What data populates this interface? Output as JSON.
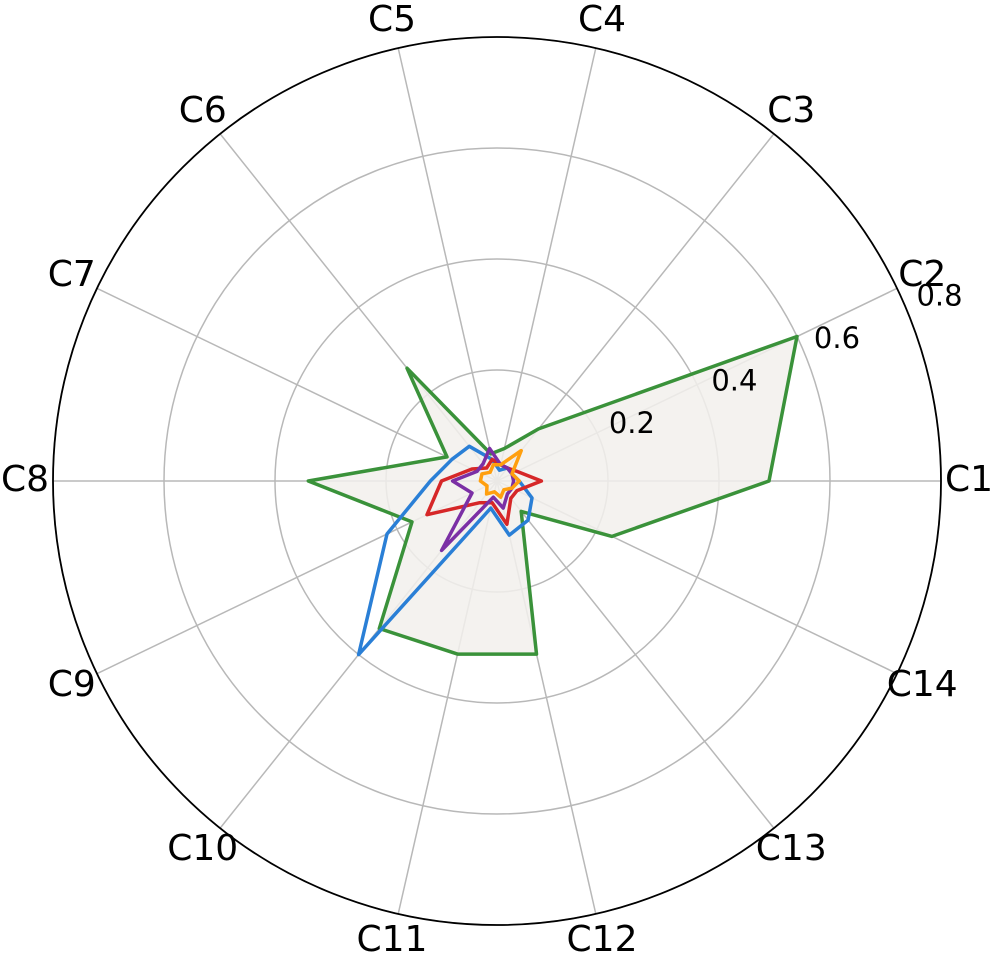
{
  "chart_data": {
    "type": "radar",
    "categories": [
      "C1",
      "C2",
      "C3",
      "C4",
      "C5",
      "C6",
      "C7",
      "C8",
      "C9",
      "C10",
      "C11",
      "C12",
      "C13",
      "C14"
    ],
    "ylim": [
      0,
      0.8
    ],
    "yticks": [
      0.2,
      0.4,
      0.6,
      0.8
    ],
    "grid": true,
    "series": [
      {
        "color": "#3a923a",
        "fill": "#f2f0ec",
        "values": [
          0.49,
          0.6,
          0.12,
          0.06,
          0.05,
          0.26,
          0.1,
          0.34,
          0.17,
          0.34,
          0.32,
          0.32,
          0.07,
          0.23
        ]
      },
      {
        "color": "#2a7fd6",
        "values": [
          0.04,
          0.03,
          0.03,
          0.02,
          0.04,
          0.08,
          0.09,
          0.12,
          0.22,
          0.4,
          0.05,
          0.1,
          0.09,
          0.07
        ]
      },
      {
        "color": "#d62728",
        "values": [
          0.08,
          0.04,
          0.03,
          0.03,
          0.04,
          0.03,
          0.05,
          0.1,
          0.14,
          0.05,
          0.04,
          0.08,
          0.04,
          0.04
        ]
      },
      {
        "color": "#7b2fa5",
        "values": [
          0.03,
          0.03,
          0.03,
          0.03,
          0.06,
          0.04,
          0.04,
          0.08,
          0.05,
          0.16,
          0.03,
          0.05,
          0.03,
          0.03
        ]
      },
      {
        "color": "#ff9f0e",
        "values": [
          0.04,
          0.03,
          0.07,
          0.03,
          0.03,
          0.02,
          0.03,
          0.03,
          0.02,
          0.03,
          0.02,
          0.03,
          0.02,
          0.03
        ]
      }
    ]
  }
}
